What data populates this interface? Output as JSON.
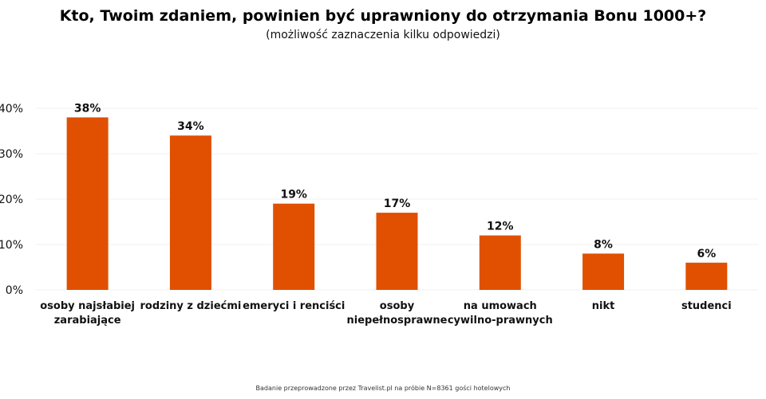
{
  "chart_data": {
    "type": "bar",
    "title": "Kto, Twoim zdaniem, powinien być uprawniony do otrzymania Bonu 1000+?",
    "subtitle": "(możliwość zaznaczenia kilku odpowiedzi)",
    "categories": [
      "osoby najsłabiej zarabiające",
      "rodziny z dziećmi",
      "emeryci i renciści",
      "osoby niepełnosprawne",
      "na umowach cywilno-prawnych",
      "nikt",
      "studenci"
    ],
    "category_lines": [
      [
        "osoby najsłabiej",
        "zarabiające"
      ],
      [
        "rodziny z dziećmi"
      ],
      [
        "emeryci i renciści"
      ],
      [
        "osoby",
        "niepełnosprawne"
      ],
      [
        "na umowach",
        "cywilno-prawnych"
      ],
      [
        "nikt"
      ],
      [
        "studenci"
      ]
    ],
    "values": [
      38,
      34,
      19,
      17,
      12,
      8,
      6
    ],
    "value_labels": [
      "38%",
      "34%",
      "19%",
      "17%",
      "12%",
      "8%",
      "6%"
    ],
    "yticks": [
      0,
      10,
      20,
      30,
      40
    ],
    "ytick_labels": [
      "0%",
      "10%",
      "20%",
      "30%",
      "40%"
    ],
    "ylim": [
      0,
      40
    ],
    "grid": true,
    "bar_color": "#E05000",
    "grid_color": "#F0F0F0",
    "footnote": "Badanie przeprowadzone przez Travelist.pl na próbie N=8361 gości hotelowych"
  }
}
